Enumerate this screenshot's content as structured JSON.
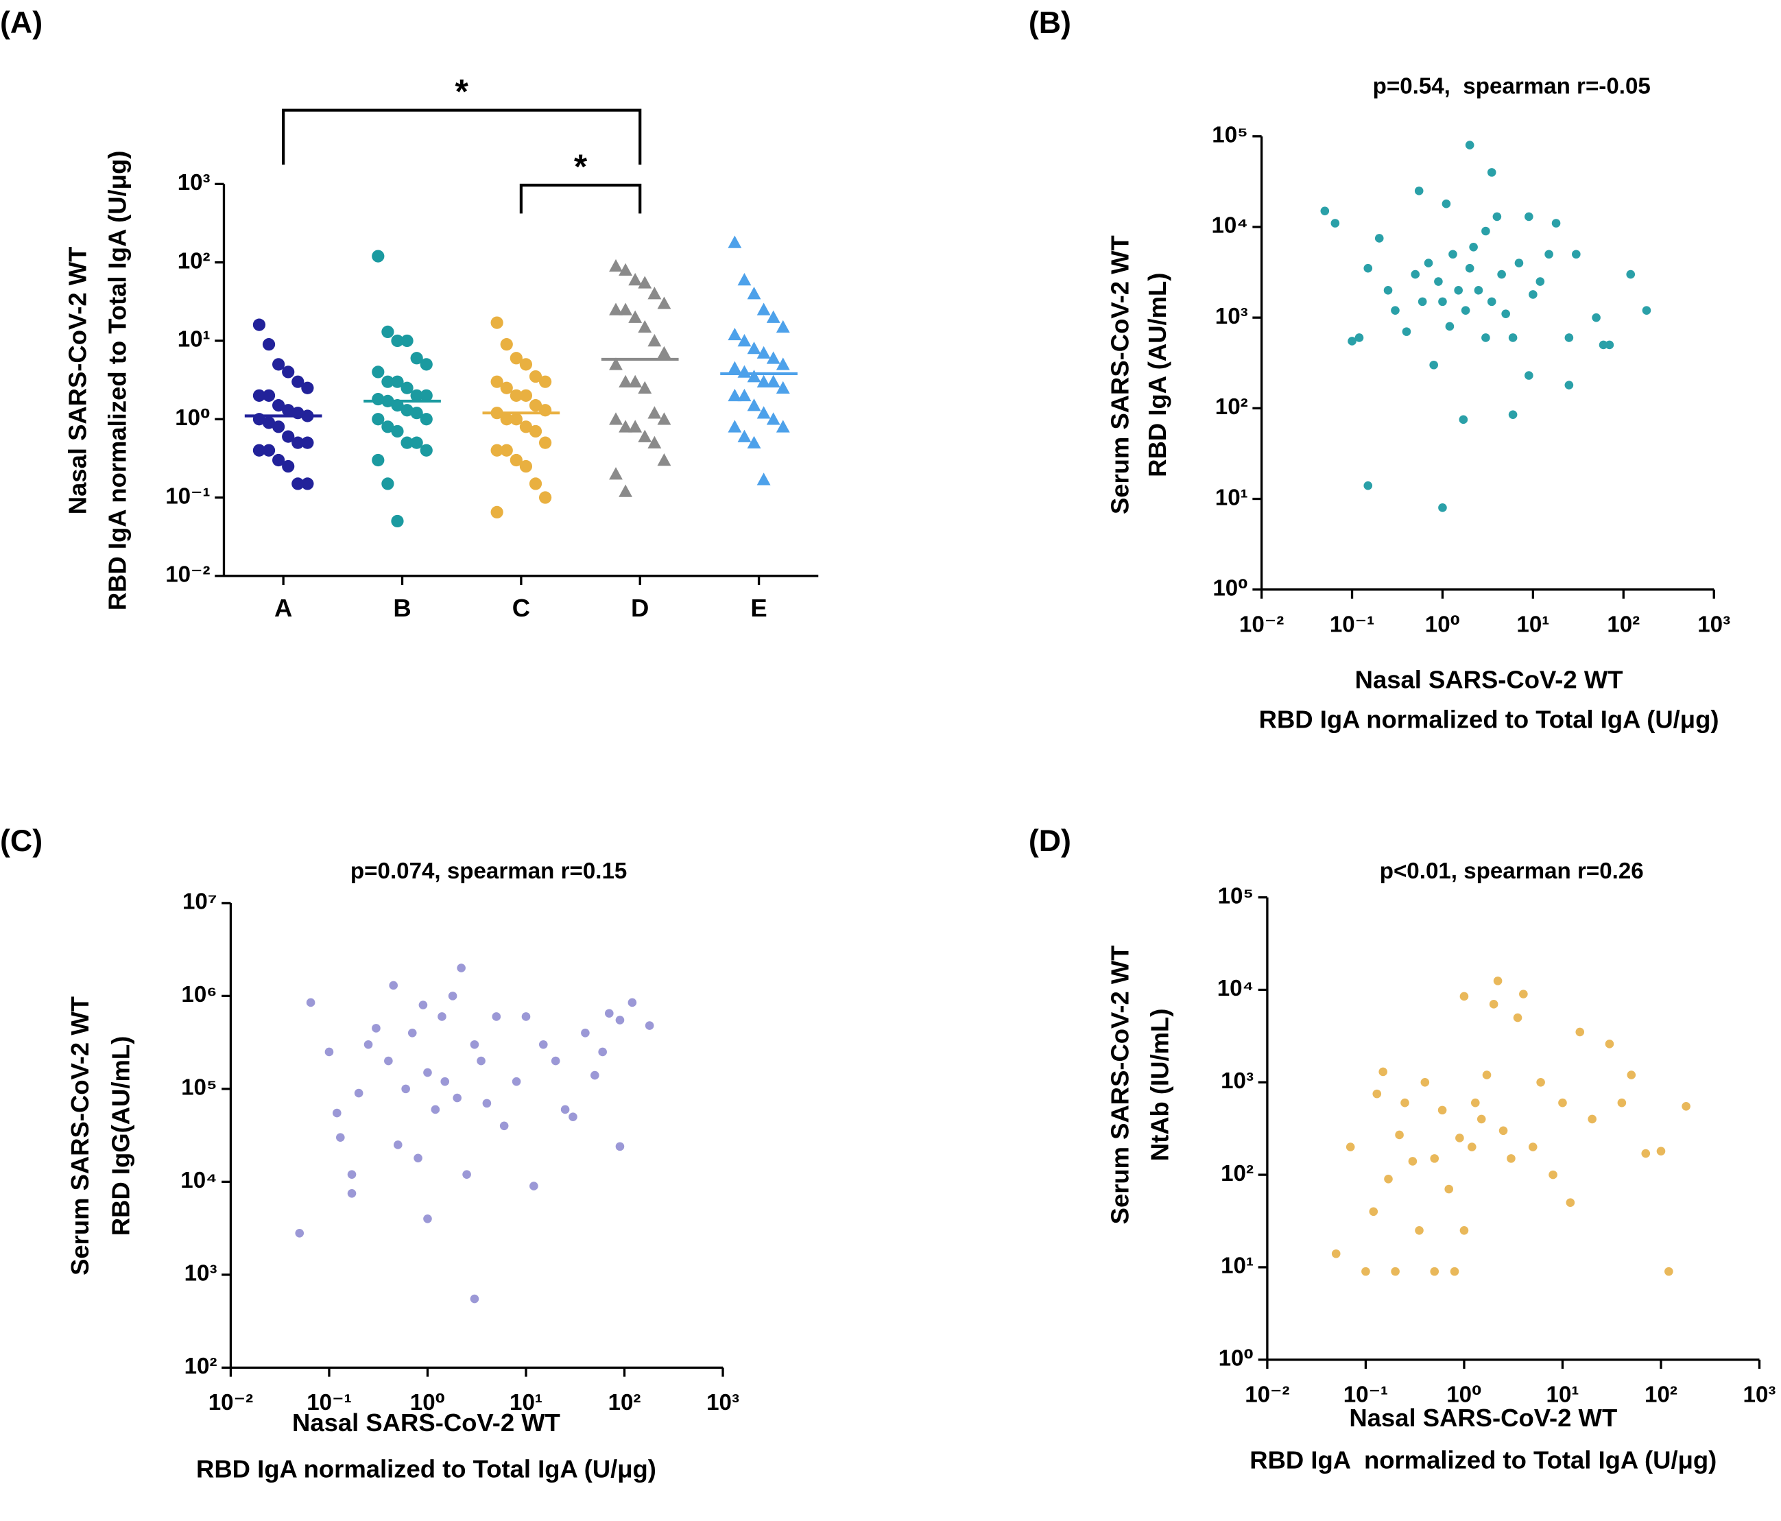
{
  "chart_data": [
    {
      "type": "dot_plot",
      "panel_label": "(A)",
      "yscale": "log",
      "ylabel": [
        "Nasal SARS-CoV-2 WT",
        "RBD IgA normalized to Total IgA (U/μg)"
      ],
      "categories": [
        "A",
        "B",
        "C",
        "D",
        "E"
      ],
      "colors": [
        "#22229a",
        "#1b9aa0",
        "#e9b040",
        "#8a8a8a",
        "#4da1ea"
      ],
      "markers": [
        "circle",
        "circle",
        "circle",
        "triangle",
        "triangle"
      ],
      "values": [
        [
          16,
          9,
          5,
          4,
          3,
          2.5,
          2,
          2,
          1.5,
          1.3,
          1.2,
          1.1,
          1,
          0.9,
          0.8,
          0.6,
          0.5,
          0.5,
          0.4,
          0.4,
          0.3,
          0.25,
          0.15,
          0.15
        ],
        [
          120,
          13,
          10,
          10,
          6,
          5,
          4,
          3,
          3,
          2.5,
          2,
          2,
          1.8,
          1.7,
          1.5,
          1.3,
          1.2,
          1,
          1,
          0.8,
          0.7,
          0.5,
          0.5,
          0.4,
          0.3,
          0.15,
          0.05
        ],
        [
          17,
          9,
          6,
          5,
          3.5,
          3,
          3,
          2.5,
          2,
          2,
          1.5,
          1.3,
          1.2,
          1,
          1,
          0.8,
          0.7,
          0.5,
          0.4,
          0.4,
          0.3,
          0.25,
          0.15,
          0.1,
          0.065
        ],
        [
          90,
          80,
          60,
          55,
          40,
          30,
          25,
          25,
          20,
          15,
          10,
          7,
          5,
          3,
          3,
          2.5,
          1.2,
          1,
          1,
          0.8,
          0.8,
          0.6,
          0.5,
          0.3,
          0.2,
          0.12
        ],
        [
          180,
          60,
          40,
          25,
          20,
          15,
          12,
          10,
          8,
          7,
          6,
          5,
          4.5,
          4,
          3.5,
          3,
          3,
          2.5,
          2,
          2,
          1.5,
          1.2,
          1,
          0.8,
          0.8,
          0.6,
          0.5,
          0.17
        ]
      ],
      "medians": [
        1.1,
        1.7,
        1.2,
        5.8,
        3.8
      ],
      "ylim": [
        0.01,
        1000
      ],
      "yticks": [
        {
          "value": 0.01,
          "label": "10⁻²"
        },
        {
          "value": 0.1,
          "label": "10⁻¹"
        },
        {
          "value": 1,
          "label": "10⁰"
        },
        {
          "value": 10,
          "label": "10¹"
        },
        {
          "value": 100,
          "label": "10²"
        },
        {
          "value": 1000,
          "label": "10³"
        }
      ],
      "brackets": [
        {
          "from": 0,
          "to": 3,
          "label": "*"
        },
        {
          "from": 2,
          "to": 3,
          "label": "*"
        }
      ]
    },
    {
      "type": "scatter",
      "panel_label": "(B)",
      "title": "p=0.54,  spearman r=-0.05",
      "xscale": "log",
      "yscale": "log",
      "color": "#2aa0a8",
      "xlabel": [
        "Nasal SARS-CoV-2 WT",
        "RBD IgA normalized to Total IgA (U/μg)"
      ],
      "ylabel": [
        "Serum SARS-CoV-2 WT",
        "RBD IgA (AU/mL)"
      ],
      "x": [
        0.05,
        0.065,
        0.1,
        0.12,
        0.15,
        0.15,
        0.2,
        0.25,
        0.3,
        0.4,
        0.5,
        0.55,
        0.6,
        0.7,
        0.8,
        0.9,
        1,
        1,
        1.1,
        1.2,
        1.3,
        1.5,
        1.7,
        1.8,
        2,
        2,
        2.2,
        2.5,
        3,
        3,
        3.5,
        3.5,
        4,
        4.5,
        5,
        6,
        6,
        7,
        9,
        9,
        10,
        12,
        15,
        18,
        25,
        25,
        30,
        50,
        60,
        70,
        120,
        180
      ],
      "y": [
        15000,
        11000,
        550,
        600,
        14,
        3500,
        7500,
        2000,
        1200,
        700,
        3000,
        25000,
        1500,
        4000,
        300,
        2500,
        8,
        1500,
        18000,
        800,
        5000,
        2000,
        75,
        1200,
        80000,
        3500,
        6000,
        2000,
        9000,
        600,
        40000,
        1500,
        13000,
        3000,
        1100,
        85,
        600,
        4000,
        230,
        13000,
        1800,
        2500,
        5000,
        11000,
        180,
        600,
        5000,
        1000,
        500,
        500,
        3000,
        1200
      ],
      "xlim": [
        0.01,
        1000
      ],
      "ylim": [
        1,
        100000
      ],
      "xticks": [
        {
          "value": 0.01,
          "label": "10⁻²"
        },
        {
          "value": 0.1,
          "label": "10⁻¹"
        },
        {
          "value": 1,
          "label": "10⁰"
        },
        {
          "value": 10,
          "label": "10¹"
        },
        {
          "value": 100,
          "label": "10²"
        },
        {
          "value": 1000,
          "label": "10³"
        }
      ],
      "yticks": [
        {
          "value": 1,
          "label": "10⁰"
        },
        {
          "value": 10,
          "label": "10¹"
        },
        {
          "value": 100,
          "label": "10²"
        },
        {
          "value": 1000,
          "label": "10³"
        },
        {
          "value": 10000,
          "label": "10⁴"
        },
        {
          "value": 100000,
          "label": "10⁵"
        }
      ]
    },
    {
      "type": "scatter",
      "panel_label": "(C)",
      "title": "p=0.074, spearman r=0.15",
      "xscale": "log",
      "yscale": "log",
      "color": "#9b98d6",
      "xlabel": [
        "Nasal SARS-CoV-2 WT",
        "RBD IgA normalized to Total IgA (U/μg)"
      ],
      "ylabel": [
        "Serum SARS-CoV-2 WT",
        "RBD IgG(AU/mL)"
      ],
      "x": [
        0.05,
        0.065,
        0.1,
        0.12,
        0.13,
        0.17,
        0.17,
        0.2,
        0.25,
        0.3,
        0.4,
        0.45,
        0.5,
        0.6,
        0.7,
        0.8,
        0.9,
        1,
        1,
        1.2,
        1.4,
        1.5,
        1.8,
        2,
        2.2,
        2.5,
        3,
        3,
        3.5,
        4,
        5,
        6,
        8,
        10,
        12,
        15,
        20,
        25,
        30,
        40,
        50,
        60,
        70,
        90,
        90,
        120,
        180
      ],
      "y": [
        2800,
        850000,
        250000,
        55000,
        30000,
        12000,
        7500,
        90000,
        300000,
        450000,
        200000,
        1300000,
        25000,
        100000,
        400000,
        18000,
        800000,
        4000,
        150000,
        60000,
        600000,
        120000,
        1000000,
        80000,
        2000000,
        12000,
        550,
        300000,
        200000,
        70000,
        600000,
        40000,
        120000,
        600000,
        9000,
        300000,
        200000,
        60000,
        50000,
        400000,
        140000,
        250000,
        650000,
        550000,
        24000,
        850000,
        480000
      ],
      "xlim": [
        0.01,
        1000
      ],
      "ylim": [
        100,
        10000000
      ],
      "xticks": [
        {
          "value": 0.01,
          "label": "10⁻²"
        },
        {
          "value": 0.1,
          "label": "10⁻¹"
        },
        {
          "value": 1,
          "label": "10⁰"
        },
        {
          "value": 10,
          "label": "10¹"
        },
        {
          "value": 100,
          "label": "10²"
        },
        {
          "value": 1000,
          "label": "10³"
        }
      ],
      "yticks": [
        {
          "value": 100,
          "label": "10²"
        },
        {
          "value": 1000,
          "label": "10³"
        },
        {
          "value": 10000,
          "label": "10⁴"
        },
        {
          "value": 100000,
          "label": "10⁵"
        },
        {
          "value": 1000000,
          "label": "10⁶"
        },
        {
          "value": 10000000,
          "label": "10⁷"
        }
      ]
    },
    {
      "type": "scatter",
      "panel_label": "(D)",
      "title": "p<0.01, spearman r=0.26",
      "xscale": "log",
      "yscale": "log",
      "color": "#e9b85a",
      "xlabel": [
        "Nasal SARS-CoV-2 WT",
        "RBD IgA  normalized to Total IgA (U/μg)"
      ],
      "ylabel": [
        "Serum SARS-CoV-2 WT",
        "NtAb (IU/mL)"
      ],
      "x": [
        0.05,
        0.07,
        0.1,
        0.12,
        0.13,
        0.15,
        0.17,
        0.2,
        0.22,
        0.25,
        0.3,
        0.35,
        0.4,
        0.5,
        0.5,
        0.6,
        0.7,
        0.8,
        0.9,
        1,
        1,
        1.2,
        1.3,
        1.5,
        1.7,
        2,
        2.2,
        2.5,
        3,
        3.5,
        4,
        5,
        6,
        8,
        10,
        12,
        15,
        20,
        30,
        40,
        50,
        70,
        100,
        120,
        180
      ],
      "y": [
        14,
        200,
        9,
        40,
        750,
        1300,
        90,
        9,
        270,
        600,
        140,
        25,
        1000,
        9,
        150,
        500,
        70,
        9,
        250,
        25,
        8500,
        200,
        600,
        400,
        1200,
        7000,
        12500,
        300,
        150,
        5000,
        9000,
        200,
        1000,
        100,
        600,
        50,
        3500,
        400,
        2600,
        600,
        1200,
        170,
        180,
        9,
        550
      ],
      "xlim": [
        0.01,
        1000
      ],
      "ylim": [
        1,
        100000
      ],
      "xticks": [
        {
          "value": 0.01,
          "label": "10⁻²"
        },
        {
          "value": 0.1,
          "label": "10⁻¹"
        },
        {
          "value": 1,
          "label": "10⁰"
        },
        {
          "value": 10,
          "label": "10¹"
        },
        {
          "value": 100,
          "label": "10²"
        },
        {
          "value": 1000,
          "label": "10³"
        }
      ],
      "yticks": [
        {
          "value": 1,
          "label": "10⁰"
        },
        {
          "value": 10,
          "label": "10¹"
        },
        {
          "value": 100,
          "label": "10²"
        },
        {
          "value": 1000,
          "label": "10³"
        },
        {
          "value": 10000,
          "label": "10⁴"
        },
        {
          "value": 100000,
          "label": "10⁵"
        }
      ]
    }
  ]
}
